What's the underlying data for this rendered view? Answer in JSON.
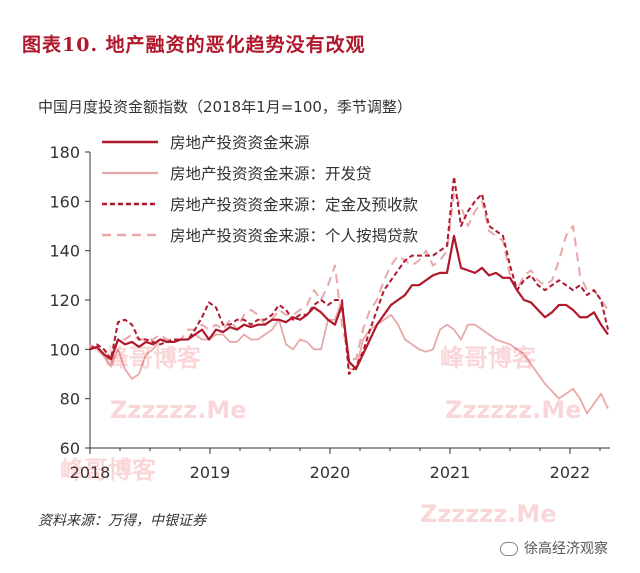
{
  "header": {
    "title": "图表10.  地产融资的恶化趋势没有改观"
  },
  "source": "资料来源：万得，中银证券",
  "footer_logo": "徐高经济观察",
  "watermarks": [
    "峰哥博客",
    "Zzzzzz.Me",
    "峰哥博客",
    "Zzzzzz.Me",
    "峰哥博客",
    "Zzzzzz.Me"
  ],
  "colors": {
    "title": "#b0182b",
    "s0": "#b0182b",
    "s1": "#e8a8a8",
    "s2": "#b0182b",
    "s3": "#e8a8a8"
  },
  "chart_data": {
    "type": "line",
    "title": "",
    "subtitle": "中国月度投资金额指数（2018年1月=100，季节调整）",
    "ylim": [
      60,
      180
    ],
    "y_ticks": [
      60,
      80,
      100,
      120,
      140,
      160,
      180
    ],
    "x_ticks": [
      "2018",
      "2019",
      "2020",
      "2021",
      "2022"
    ],
    "x_tick_months": [
      0,
      12,
      24,
      36,
      48
    ],
    "x_range_months": [
      0,
      52
    ],
    "legend_position": "top-left",
    "series": [
      {
        "name": "房地产投资资金来源",
        "style": "solid-thick",
        "values": [
          100,
          101,
          98,
          96,
          104,
          102,
          103,
          101,
          103,
          102,
          104,
          103,
          103,
          104,
          104,
          106,
          108,
          104,
          108,
          107,
          109,
          108,
          110,
          109,
          110,
          110,
          112,
          112,
          111,
          113,
          112,
          114,
          117,
          115,
          112,
          110,
          118,
          95,
          92,
          98,
          104,
          110,
          114,
          118,
          120,
          122,
          126,
          126,
          128,
          130,
          131,
          131,
          146,
          133,
          132,
          131,
          133,
          130,
          131,
          129,
          129,
          124,
          120,
          119,
          116,
          113,
          115,
          118,
          118,
          116,
          113,
          113,
          115,
          110,
          106
        ]
      },
      {
        "name": "房地产投资资金来源：开发贷",
        "style": "solid-thin",
        "values": [
          101,
          100,
          97,
          93,
          100,
          92,
          88,
          90,
          98,
          100,
          104,
          104,
          103,
          104,
          104,
          106,
          104,
          104,
          106,
          106,
          103,
          103,
          106,
          104,
          104,
          106,
          108,
          112,
          102,
          100,
          104,
          103,
          100,
          100,
          112,
          112,
          120,
          92,
          92,
          104,
          108,
          110,
          112,
          114,
          110,
          104,
          102,
          100,
          99,
          100,
          108,
          110,
          108,
          104,
          110,
          110,
          108,
          106,
          104,
          103,
          102,
          100,
          98,
          94,
          90,
          86,
          83,
          80,
          82,
          84,
          80,
          74,
          78,
          82,
          76
        ]
      },
      {
        "name": "房地产投资资金来源：定金及预收款",
        "style": "dashed",
        "values": [
          100,
          102,
          100,
          96,
          111,
          112,
          110,
          104,
          104,
          103,
          102,
          103,
          104,
          104,
          104,
          108,
          113,
          119,
          117,
          110,
          110,
          112,
          112,
          110,
          112,
          112,
          114,
          118,
          116,
          112,
          114,
          114,
          118,
          120,
          118,
          120,
          120,
          90,
          93,
          99,
          108,
          116,
          124,
          128,
          132,
          136,
          138,
          138,
          138,
          138,
          140,
          142,
          170,
          150,
          156,
          160,
          163,
          150,
          148,
          146,
          134,
          124,
          128,
          130,
          126,
          124,
          126,
          128,
          126,
          124,
          126,
          122,
          124,
          120,
          108
        ]
      },
      {
        "name": "房地产投资资金来源：个人按揭贷款",
        "style": "dashed-light",
        "values": [
          102,
          100,
          98,
          94,
          104,
          104,
          106,
          104,
          104,
          104,
          106,
          104,
          104,
          104,
          108,
          108,
          110,
          108,
          110,
          108,
          112,
          108,
          114,
          116,
          114,
          110,
          112,
          116,
          114,
          114,
          116,
          118,
          124,
          120,
          126,
          134,
          110,
          96,
          96,
          108,
          116,
          120,
          128,
          134,
          138,
          136,
          134,
          136,
          140,
          134,
          136,
          140,
          164,
          158,
          150,
          156,
          160,
          148,
          146,
          144,
          130,
          124,
          130,
          132,
          128,
          126,
          128,
          136,
          146,
          150,
          130,
          124,
          124,
          120,
          116
        ]
      }
    ]
  }
}
